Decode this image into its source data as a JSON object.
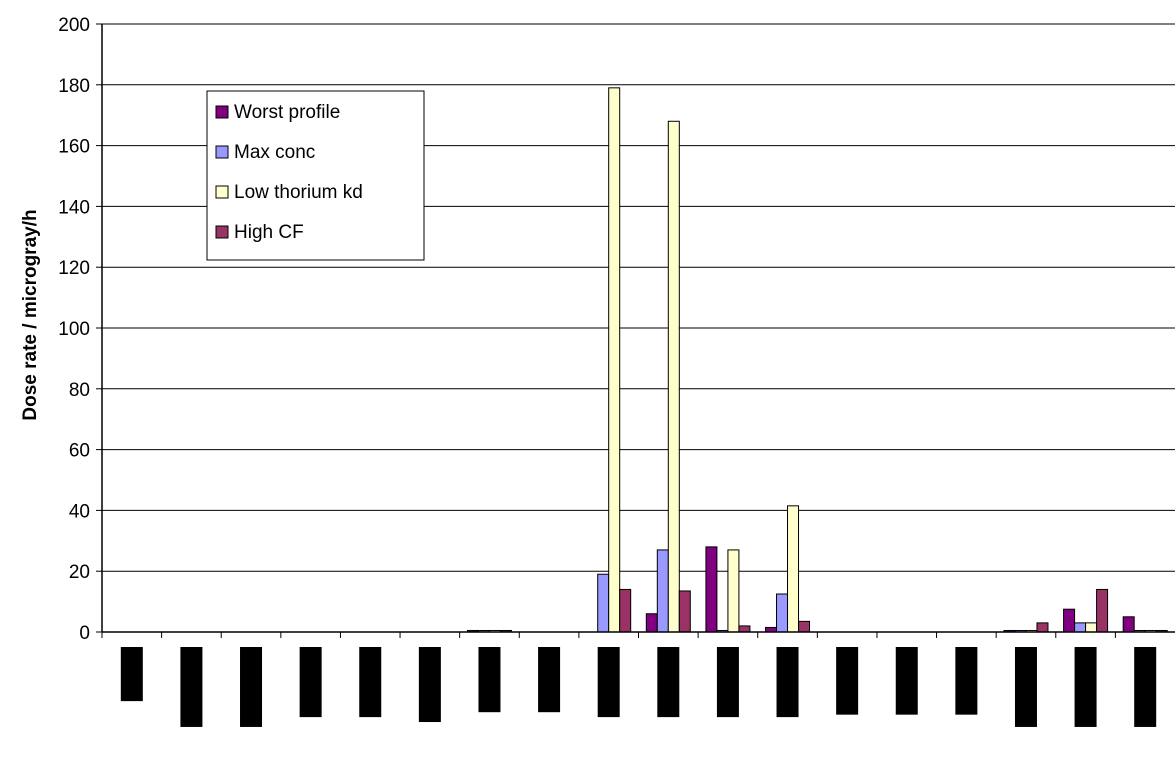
{
  "chart_data": {
    "type": "bar",
    "title": "",
    "xlabel": "",
    "ylabel": "Dose rate / microgray/h",
    "ylim": [
      0,
      200
    ],
    "yticks": [
      0,
      20,
      40,
      60,
      80,
      100,
      120,
      140,
      160,
      180,
      200
    ],
    "grid": true,
    "legend_position": "top-left",
    "categories": [
      "",
      "",
      "",
      "",
      "",
      "",
      "",
      "",
      "",
      "",
      "",
      "",
      "",
      "",
      "",
      "",
      "",
      ""
    ],
    "category_label_depth": [
      0.44,
      0.65,
      0.65,
      0.57,
      0.57,
      0.61,
      0.53,
      0.53,
      0.57,
      0.57,
      0.57,
      0.57,
      0.55,
      0.55,
      0.55,
      0.65,
      0.65,
      0.65
    ],
    "series": [
      {
        "name": "Worst profile",
        "color": "#800080",
        "values": [
          0,
          0,
          0,
          0,
          0,
          0,
          0.5,
          0,
          0,
          6,
          28,
          1.5,
          0,
          0,
          0,
          0.5,
          7.5,
          5
        ]
      },
      {
        "name": "Max conc",
        "color": "#9999ff",
        "values": [
          0,
          0,
          0,
          0,
          0,
          0,
          0.5,
          0,
          19,
          27,
          0.5,
          12.5,
          0,
          0,
          0,
          0.5,
          3,
          0.5
        ]
      },
      {
        "name": "Low thorium kd",
        "color": "#ffffcc",
        "values": [
          0,
          0,
          0,
          0,
          0,
          0,
          0.5,
          0,
          179,
          168,
          27,
          41.5,
          0,
          0,
          0,
          0.5,
          3,
          0.5
        ]
      },
      {
        "name": "High CF",
        "color": "#993366",
        "values": [
          0,
          0,
          0,
          0,
          0,
          0,
          0.5,
          0,
          14,
          13.5,
          2,
          3.5,
          0,
          0,
          0,
          3,
          14,
          0.5
        ]
      }
    ]
  }
}
